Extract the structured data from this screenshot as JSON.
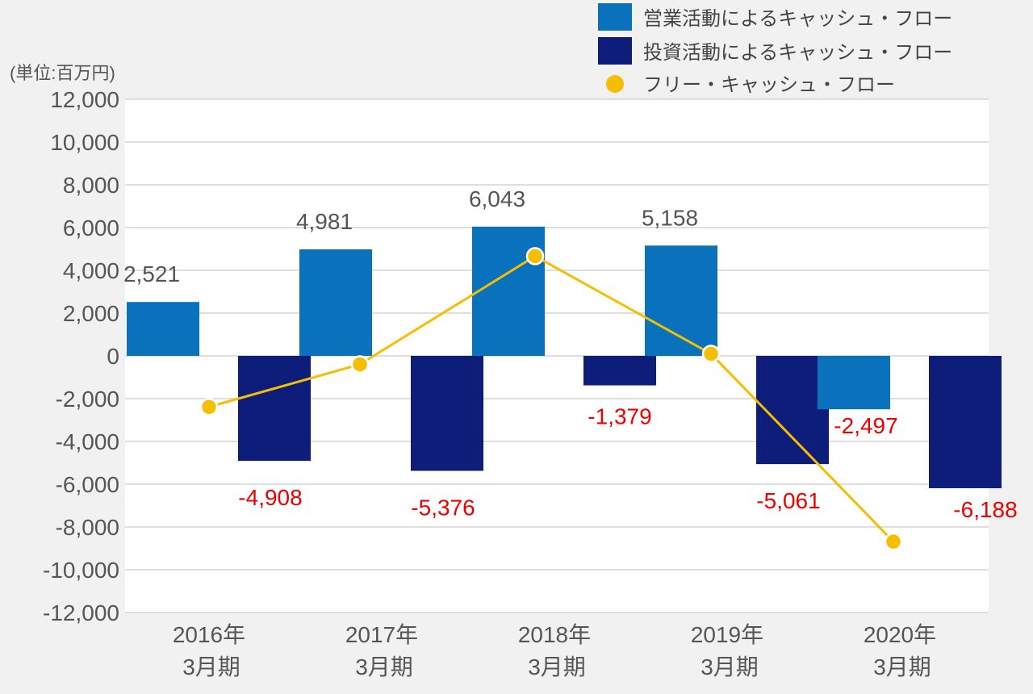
{
  "chart_data": {
    "type": "bar",
    "unit_label": "(単位:百万円)",
    "categories": [
      {
        "year": "2016年",
        "period": "3月期"
      },
      {
        "year": "2017年",
        "period": "3月期"
      },
      {
        "year": "2018年",
        "period": "3月期"
      },
      {
        "year": "2019年",
        "period": "3月期"
      },
      {
        "year": "2020年",
        "period": "3月期"
      }
    ],
    "series": [
      {
        "name": "営業活動によるキャッシュ・フロー",
        "type": "bar",
        "color": "#0a72bd",
        "values": [
          2521,
          4981,
          6043,
          5158,
          -2497
        ],
        "labels": [
          "2,521",
          "4,981",
          "6,043",
          "5,158",
          "-2,497"
        ],
        "label_colors": [
          "#555555",
          "#555555",
          "#555555",
          "#555555",
          "#ee0000"
        ]
      },
      {
        "name": "投資活動によるキャッシュ・フロー",
        "type": "bar",
        "color": "#0f1d7a",
        "values": [
          -4908,
          -5376,
          -1379,
          -5061,
          -6188
        ],
        "labels": [
          "-4,908",
          "-5,376",
          "-1,379",
          "-5,061",
          "-6,188"
        ],
        "label_colors": [
          "#ee0000",
          "#ee0000",
          "#ee0000",
          "#ee0000",
          "#ee0000"
        ]
      },
      {
        "name": "フリー・キャッシュ・フロー",
        "type": "line",
        "color": "#f6be00",
        "values": [
          -2387,
          -395,
          4664,
          97,
          -8685
        ]
      }
    ],
    "ylim": [
      -12000,
      12000
    ],
    "yticks": [
      12000,
      10000,
      8000,
      6000,
      4000,
      2000,
      0,
      -2000,
      -4000,
      -6000,
      -8000,
      -10000,
      -12000
    ],
    "ytick_labels": [
      "12,000",
      "10,000",
      "8,000",
      "6,000",
      "4,000",
      "2,000",
      "0",
      "-2,000",
      "-4,000",
      "-6,000",
      "-8,000",
      "-10,000",
      "-12,000"
    ],
    "grid": true,
    "legend_position": "top-right"
  }
}
